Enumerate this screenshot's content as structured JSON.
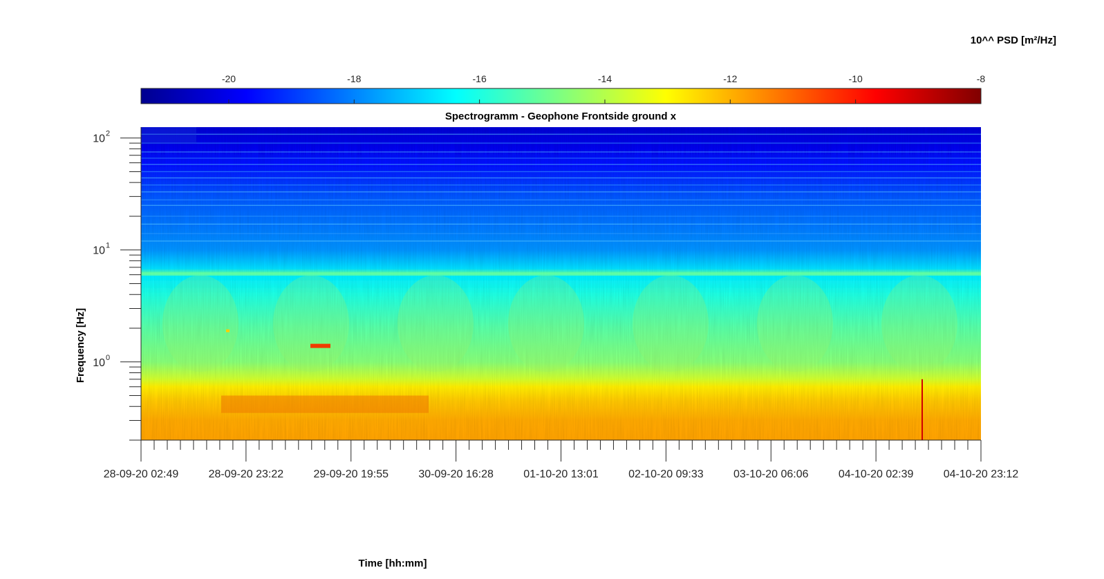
{
  "chart_data": {
    "type": "heatmap",
    "title": "Spectrogramm - Geophone Frontside ground x",
    "xlabel": "Time [hh:mm]",
    "ylabel": "Frequency [Hz]",
    "colorbar_label": "10^^ PSD [m²/Hz]",
    "colorbar_ticks": [
      "-20",
      "-18",
      "-16",
      "-14",
      "-12",
      "-10",
      "-8"
    ],
    "colorbar_range": [
      -21.4,
      -8
    ],
    "colorbar_position": "top",
    "colormap": "jet",
    "x_ticks": [
      "28-09-20 02:49",
      "28-09-20 23:22",
      "29-09-20 19:55",
      "30-09-20 16:28",
      "01-10-20 13:01",
      "02-10-20 09:33",
      "03-10-20 06:06",
      "04-10-20 02:39",
      "04-10-20 23:12"
    ],
    "xlim": [
      "28-09-20 02:49",
      "04-10-20 23:12"
    ],
    "y_scale": "log",
    "y_ticks": [
      {
        "base": "10",
        "exp": "0",
        "value": 1
      },
      {
        "base": "10",
        "exp": "1",
        "value": 10
      },
      {
        "base": "10",
        "exp": "2",
        "value": 100
      }
    ],
    "ylim": [
      0.2,
      125
    ],
    "psd_profile_log10": [
      {
        "f": 0.2,
        "psd": -11.8
      },
      {
        "f": 0.3,
        "psd": -11.9
      },
      {
        "f": 0.45,
        "psd": -12.3
      },
      {
        "f": 0.6,
        "psd": -12.8
      },
      {
        "f": 0.7,
        "psd": -13.6
      },
      {
        "f": 1.0,
        "psd": -14.6
      },
      {
        "f": 2.0,
        "psd": -15.2
      },
      {
        "f": 4.0,
        "psd": -16.0
      },
      {
        "f": 5.8,
        "psd": -16.6
      },
      {
        "f": 6.2,
        "psd": -15.2
      },
      {
        "f": 6.8,
        "psd": -16.8
      },
      {
        "f": 10,
        "psd": -17.8
      },
      {
        "f": 30,
        "psd": -18.6
      },
      {
        "f": 60,
        "psd": -19.6
      },
      {
        "f": 125,
        "psd": -20.3
      }
    ]
  }
}
